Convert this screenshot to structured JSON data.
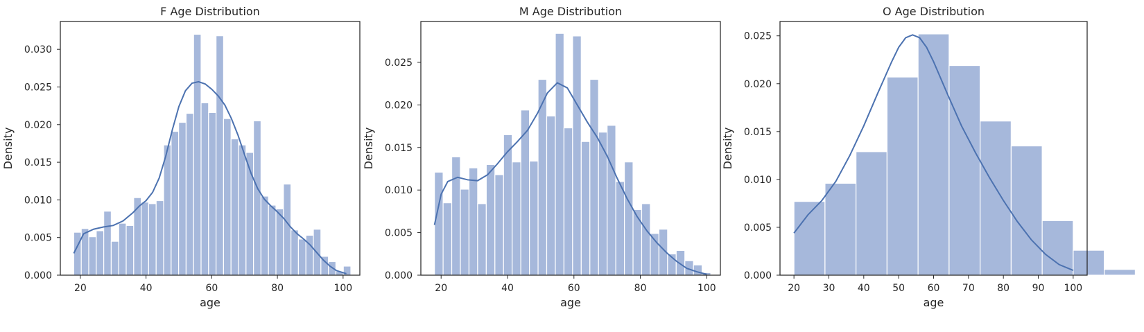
{
  "colors": {
    "bar": "#A6B8DB",
    "kde": "#4C72B0",
    "frame": "#262626",
    "text": "#262626"
  },
  "chart_data": [
    {
      "type": "bar",
      "title": "F Age Distribution",
      "xlabel": "age",
      "ylabel": "Density",
      "xlim": [
        13.9,
        105.1
      ],
      "ylim": [
        0,
        0.0337
      ],
      "xticks": [
        20,
        40,
        60,
        80,
        100
      ],
      "yticks": [
        0,
        0.005,
        0.01,
        0.015,
        0.02,
        0.025,
        0.03
      ],
      "ytick_labels": [
        "0.000",
        "0.005",
        "0.010",
        "0.015",
        "0.020",
        "0.025",
        "0.030"
      ],
      "bin_start": 18,
      "bin_width": 2.28,
      "values": [
        0.0057,
        0.0062,
        0.0051,
        0.0059,
        0.0085,
        0.0045,
        0.0069,
        0.0066,
        0.0103,
        0.0097,
        0.0095,
        0.0099,
        0.0173,
        0.0191,
        0.0203,
        0.0215,
        0.032,
        0.0229,
        0.0216,
        0.0318,
        0.0208,
        0.0181,
        0.0173,
        0.0163,
        0.0205,
        0.0105,
        0.0093,
        0.0088,
        0.0121,
        0.006,
        0.0048,
        0.0053,
        0.0061,
        0.0025,
        0.0018,
        0.0005,
        0.0012
      ],
      "kde_x": [
        18,
        21,
        24,
        27,
        30,
        33,
        36,
        38,
        40,
        42,
        44,
        46,
        48,
        50,
        52,
        54,
        56,
        58,
        60,
        62,
        64,
        66,
        68,
        70,
        72,
        74,
        76,
        78,
        80,
        82,
        84,
        86,
        88,
        90,
        92,
        94,
        96,
        98,
        101
      ],
      "kde_y": [
        0.0029,
        0.0055,
        0.0061,
        0.0064,
        0.0066,
        0.0072,
        0.0083,
        0.0092,
        0.0099,
        0.011,
        0.0129,
        0.0158,
        0.0193,
        0.0224,
        0.0245,
        0.0255,
        0.0257,
        0.0254,
        0.0247,
        0.0238,
        0.0226,
        0.0208,
        0.0186,
        0.016,
        0.0135,
        0.0115,
        0.0101,
        0.0092,
        0.0084,
        0.0075,
        0.0064,
        0.0055,
        0.0048,
        0.004,
        0.003,
        0.002,
        0.0012,
        0.0006,
        0.0002
      ]
    },
    {
      "type": "bar",
      "title": "M Age Distribution",
      "xlabel": "age",
      "ylabel": "Density",
      "xlim": [
        13.9,
        104.1
      ],
      "ylim": [
        0,
        0.0298
      ],
      "xticks": [
        20,
        40,
        60,
        80,
        100
      ],
      "yticks": [
        0,
        0.005,
        0.01,
        0.015,
        0.02,
        0.025
      ],
      "ytick_labels": [
        "0.000",
        "0.005",
        "0.010",
        "0.015",
        "0.020",
        "0.025"
      ],
      "bin_start": 18,
      "bin_width": 2.6,
      "values": [
        0.0121,
        0.0085,
        0.0139,
        0.0101,
        0.0126,
        0.0084,
        0.013,
        0.0118,
        0.0165,
        0.0133,
        0.0194,
        0.0134,
        0.023,
        0.0187,
        0.0284,
        0.0173,
        0.0281,
        0.0157,
        0.023,
        0.0168,
        0.0176,
        0.011,
        0.0133,
        0.0077,
        0.0084,
        0.0049,
        0.0054,
        0.0025,
        0.0029,
        0.0017,
        0.0012,
        0.0003
      ],
      "kde_x": [
        18,
        20,
        22,
        25,
        28,
        31,
        34,
        37,
        40,
        43,
        46,
        49,
        52,
        55,
        58,
        61,
        64,
        67,
        70,
        73,
        76,
        79,
        82,
        85,
        88,
        91,
        94,
        97,
        100
      ],
      "kde_y": [
        0.0059,
        0.0095,
        0.011,
        0.0115,
        0.0112,
        0.0111,
        0.0118,
        0.0131,
        0.0145,
        0.0157,
        0.017,
        0.019,
        0.0214,
        0.0226,
        0.022,
        0.02,
        0.018,
        0.0162,
        0.014,
        0.0114,
        0.009,
        0.0069,
        0.0052,
        0.0038,
        0.0026,
        0.0016,
        0.0008,
        0.0004,
        0.0001
      ]
    },
    {
      "type": "bar",
      "title": "O Age Distribution",
      "xlabel": "age",
      "ylabel": "Density",
      "xlim": [
        16.0,
        104.0
      ],
      "ylim": [
        0,
        0.0265
      ],
      "xticks": [
        20,
        30,
        40,
        50,
        60,
        70,
        80,
        90,
        100
      ],
      "yticks": [
        0,
        0.005,
        0.01,
        0.015,
        0.02,
        0.025
      ],
      "ytick_labels": [
        "0.000",
        "0.005",
        "0.010",
        "0.015",
        "0.020",
        "0.025"
      ],
      "bin_start": 20,
      "bin_width": 8.89,
      "values": [
        0.0077,
        0.0096,
        0.0129,
        0.0207,
        0.0252,
        0.0219,
        0.0161,
        0.0135,
        0.0057,
        0.0026,
        0.0006
      ],
      "kde_x": [
        20,
        24,
        28,
        32,
        36,
        40,
        44,
        48,
        50,
        52,
        54,
        56,
        58,
        60,
        64,
        68,
        72,
        76,
        80,
        84,
        88,
        92,
        96,
        100
      ],
      "kde_y": [
        0.0044,
        0.0063,
        0.0078,
        0.0098,
        0.0125,
        0.0156,
        0.019,
        0.0223,
        0.0238,
        0.0248,
        0.0251,
        0.0248,
        0.0238,
        0.0223,
        0.0189,
        0.0156,
        0.0128,
        0.0102,
        0.0078,
        0.0056,
        0.0037,
        0.0022,
        0.0011,
        0.0005
      ]
    }
  ]
}
